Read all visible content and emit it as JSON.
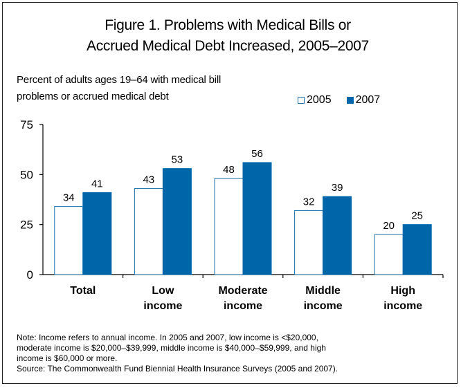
{
  "title_line1": "Figure 1. Problems with Medical Bills or",
  "title_line2": "Accrued Medical Debt Increased, 2005–2007",
  "ylabel_line1": "Percent of adults ages 19–64 with medical bill",
  "ylabel_line2": "problems or accrued medical debt",
  "legend": [
    {
      "label": "2005",
      "color": "#ffffff",
      "border": "#1b6fa8"
    },
    {
      "label": "2007",
      "color": "#0066aa"
    }
  ],
  "chart_data": {
    "type": "bar",
    "title": "Figure 1. Problems with Medical Bills or Accrued Medical Debt Increased, 2005–2007",
    "ylabel": "Percent of adults ages 19–64 with medical bill problems or accrued medical debt",
    "xlabel": "",
    "ylim": [
      0,
      75
    ],
    "yticks": [
      "0",
      "25",
      "50",
      "75"
    ],
    "categories": [
      [
        "Total"
      ],
      [
        "Low",
        "income"
      ],
      [
        "Moderate",
        "income"
      ],
      [
        "Middle",
        "income"
      ],
      [
        "High",
        "income"
      ]
    ],
    "series": [
      {
        "name": "2005",
        "values": [
          34,
          43,
          48,
          32,
          20
        ],
        "color": "#ffffff",
        "stroke": "#1b6fa8"
      },
      {
        "name": "2007",
        "values": [
          41,
          53,
          56,
          39,
          25
        ],
        "color": "#0066aa",
        "stroke": "#0066aa"
      }
    ],
    "legend_position": "top-right",
    "grid": false
  },
  "note_line1": "Note: Income refers to annual income. In 2005 and 2007, low income is <$20,000,",
  "note_line2": "moderate income is $20,000–$39,999, middle income is $40,000–$59,999, and high",
  "note_line3": "income is $60,000 or more.",
  "source_line": "Source: The Commonwealth Fund Biennial Health Insurance Surveys (2005 and 2007)."
}
